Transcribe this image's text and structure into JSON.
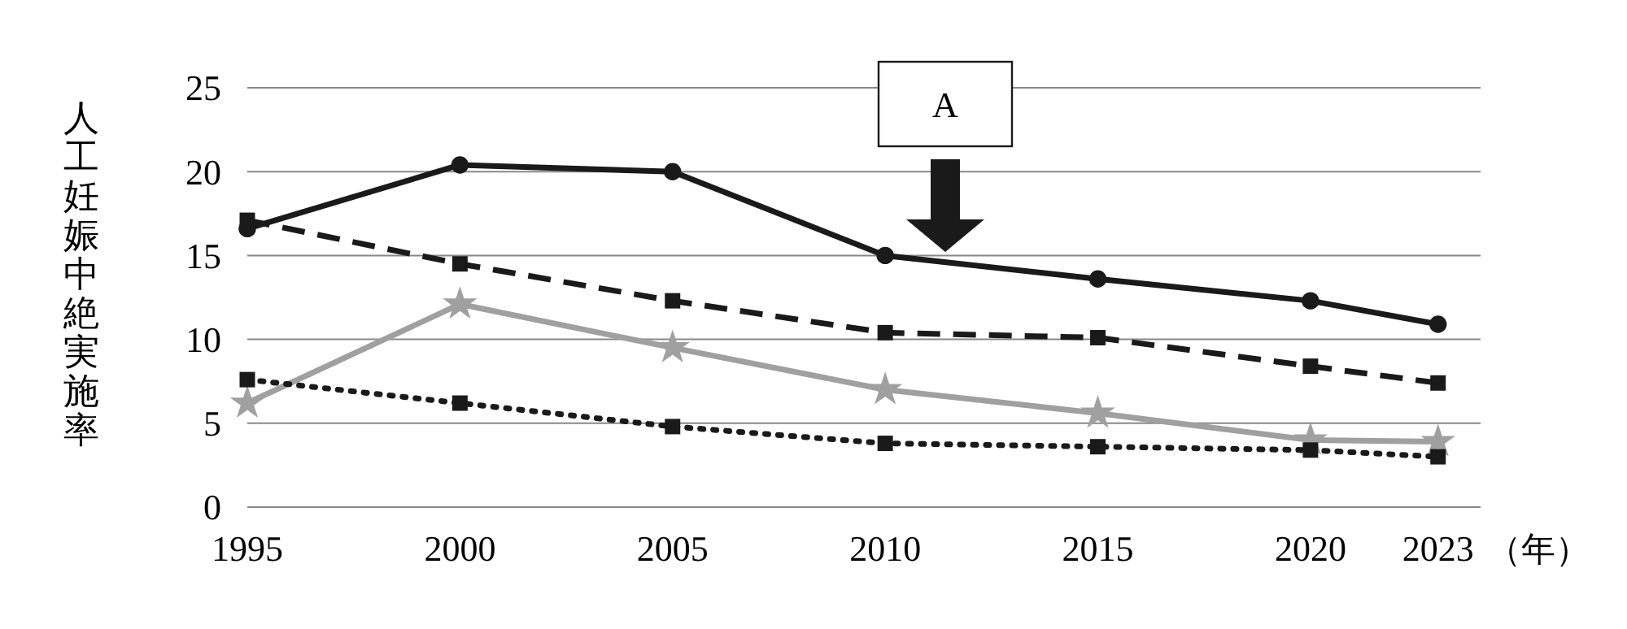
{
  "chart_data": {
    "type": "line",
    "ylabel": "人工妊娠中絶実施率",
    "xlabel": "（年）",
    "x": [
      1995,
      2000,
      2005,
      2010,
      2015,
      2020,
      2023
    ],
    "xlim": [
      1995,
      2024
    ],
    "xticks": [
      1995,
      2000,
      2005,
      2010,
      2015,
      2020,
      2023
    ],
    "ylim": [
      0,
      25
    ],
    "yticks": [
      0,
      5,
      10,
      15,
      20,
      25
    ],
    "grid": "y",
    "series": [
      {
        "color": "#1a1a1a",
        "marker": "circle",
        "line_style": "solid",
        "values": [
          16.6,
          20.4,
          20.0,
          15.0,
          13.6,
          12.3,
          10.9
        ]
      },
      {
        "color": "#1a1a1a",
        "marker": "square",
        "line_style": "dashed",
        "values": [
          17.1,
          14.5,
          12.3,
          10.4,
          10.1,
          8.4,
          7.4
        ]
      },
      {
        "color": "#a0a0a0",
        "marker": "star",
        "line_style": "solid",
        "values": [
          6.2,
          12.1,
          9.5,
          7.0,
          5.6,
          4.0,
          3.9
        ]
      },
      {
        "color": "#1a1a1a",
        "marker": "square",
        "line_style": "dotted",
        "values": [
          7.6,
          6.2,
          4.8,
          3.8,
          3.6,
          3.4,
          3.0
        ]
      }
    ],
    "annotations": [
      "A"
    ]
  }
}
